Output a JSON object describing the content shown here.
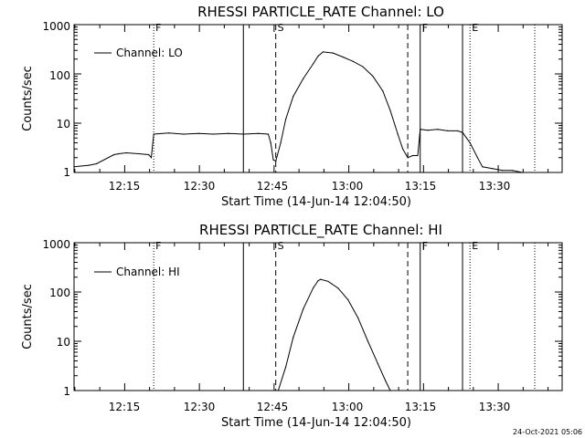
{
  "chart_data": [
    {
      "type": "line",
      "title": "RHESSI PARTICLE_RATE Channel: LO",
      "xlabel": "Start Time (14-Jun-14 12:04:50)",
      "ylabel": "Counts/sec",
      "yscale": "log",
      "ylim": [
        1,
        1000
      ],
      "xlim": [
        "12:04:50",
        "13:42:50"
      ],
      "yticks": [
        "1",
        "10",
        "100",
        "1000"
      ],
      "xticks": [
        "12:15",
        "12:30",
        "12:45",
        "13:00",
        "13:15",
        "13:30"
      ],
      "legend": {
        "label": "Channel: LO",
        "position": "top-left"
      },
      "grid": false,
      "events": [
        {
          "time": "12:20:50",
          "style": "dotted",
          "label": "F"
        },
        {
          "time": "12:38:50",
          "style": "solid",
          "label": ""
        },
        {
          "time": "12:45:20",
          "style": "dashed",
          "label": "S"
        },
        {
          "time": "13:11:50",
          "style": "dashed",
          "label": ""
        },
        {
          "time": "13:14:20",
          "style": "solid",
          "label": "F"
        },
        {
          "time": "13:22:50",
          "style": "solid",
          "label": ""
        },
        {
          "time": "13:24:20",
          "style": "dotted",
          "label": "E"
        },
        {
          "time": "13:37:20",
          "style": "dotted",
          "label": ""
        }
      ],
      "series": [
        {
          "name": "Channel: LO",
          "x": [
            "12:04:50",
            "12:07:50",
            "12:09:20",
            "12:12:50",
            "12:13:50",
            "12:15:20",
            "12:17:50",
            "12:19:50",
            "12:20:20",
            "12:20:50",
            "12:23:50",
            "12:26:50",
            "12:29:50",
            "12:32:50",
            "12:35:50",
            "12:38:50",
            "12:41:50",
            "12:43:50",
            "12:44:20",
            "12:44:50",
            "12:45:20",
            "12:46:20",
            "12:47:20",
            "12:48:50",
            "12:50:50",
            "12:52:50",
            "12:53:50",
            "12:54:50",
            "12:56:50",
            "12:58:50",
            "13:00:50",
            "13:02:50",
            "13:04:50",
            "13:06:50",
            "13:08:20",
            "13:09:50",
            "13:10:50",
            "13:11:50",
            "13:12:50",
            "13:13:50",
            "13:14:20",
            "13:15:50",
            "13:17:50",
            "13:19:50",
            "13:21:50",
            "13:22:50",
            "13:24:20",
            "13:25:50",
            "13:26:50",
            "13:28:50",
            "13:30:50",
            "13:32:50",
            "13:34:50",
            "13:36:50"
          ],
          "values": [
            1.3,
            1.4,
            1.5,
            2.3,
            2.4,
            2.5,
            2.4,
            2.3,
            2.0,
            6.0,
            6.3,
            6.0,
            6.2,
            6.0,
            6.2,
            6.0,
            6.2,
            6.0,
            4.0,
            1.8,
            1.7,
            4.0,
            12,
            35,
            80,
            160,
            230,
            280,
            265,
            220,
            180,
            140,
            90,
            45,
            18,
            6,
            3,
            2,
            2.2,
            2.2,
            7.5,
            7.2,
            7.5,
            7.0,
            7.0,
            6.5,
            4.0,
            2.0,
            1.3,
            1.2,
            1.1,
            1.1,
            1.0,
            1.0
          ]
        }
      ]
    },
    {
      "type": "line",
      "title": "RHESSI PARTICLE_RATE Channel: HI",
      "xlabel": "Start Time (14-Jun-14 12:04:50)",
      "ylabel": "Counts/sec",
      "yscale": "log",
      "ylim": [
        1,
        1000
      ],
      "xlim": [
        "12:04:50",
        "13:42:50"
      ],
      "yticks": [
        "1",
        "10",
        "100",
        "1000"
      ],
      "xticks": [
        "12:15",
        "12:30",
        "12:45",
        "13:00",
        "13:15",
        "13:30"
      ],
      "legend": {
        "label": "Channel: HI",
        "position": "top-left"
      },
      "grid": false,
      "events": [
        {
          "time": "12:20:50",
          "style": "dotted",
          "label": "F"
        },
        {
          "time": "12:38:50",
          "style": "solid",
          "label": ""
        },
        {
          "time": "12:45:20",
          "style": "dashed",
          "label": "S"
        },
        {
          "time": "13:11:50",
          "style": "dashed",
          "label": ""
        },
        {
          "time": "13:14:20",
          "style": "solid",
          "label": "F"
        },
        {
          "time": "13:22:50",
          "style": "solid",
          "label": ""
        },
        {
          "time": "13:24:20",
          "style": "dotted",
          "label": "E"
        },
        {
          "time": "13:37:20",
          "style": "dotted",
          "label": ""
        }
      ],
      "series": [
        {
          "name": "Channel: HI",
          "x": [
            "12:45:50",
            "12:47:20",
            "12:48:50",
            "12:50:50",
            "12:52:50",
            "12:53:50",
            "12:54:20",
            "12:55:50",
            "12:57:50",
            "12:59:50",
            "13:01:50",
            "13:03:50",
            "13:05:50",
            "13:07:20",
            "13:08:20"
          ],
          "values": [
            1,
            3,
            12,
            45,
            120,
            170,
            180,
            165,
            120,
            70,
            30,
            10,
            3.5,
            1.6,
            1
          ]
        }
      ]
    }
  ],
  "footer": {
    "date_stamp": "24-Oct-2021 05:06"
  }
}
